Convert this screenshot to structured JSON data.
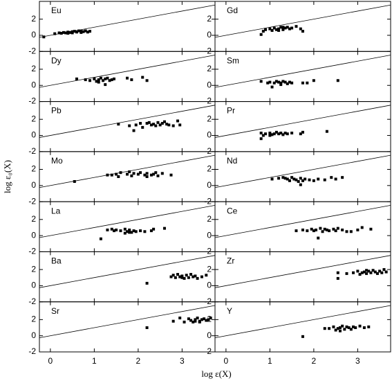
{
  "x_label": "log ε(X)",
  "y_label": "log ε₀(X)",
  "chart_data": [
    {
      "type": "scatter",
      "title": "Eu",
      "color": "#000000",
      "xlim": [
        -0.25,
        3.75
      ],
      "ylim": [
        -2,
        4.2
      ],
      "xticks": [
        0,
        1,
        2,
        3
      ],
      "yticks": [
        -2,
        0,
        2
      ],
      "x": [
        -0.15,
        0.1,
        0.2,
        0.25,
        0.3,
        0.35,
        0.4,
        0.45,
        0.5,
        0.55,
        0.6,
        0.65,
        0.7,
        0.75,
        0.8,
        0.85,
        0.9,
        0.5,
        0.4,
        0.7
      ],
      "y": [
        -0.2,
        0.2,
        0.3,
        0.25,
        0.35,
        0.3,
        0.4,
        0.35,
        0.45,
        0.5,
        0.4,
        0.55,
        0.5,
        0.45,
        0.55,
        0.4,
        0.5,
        0.3,
        0.25,
        0.35
      ]
    },
    {
      "type": "scatter",
      "title": "Gd",
      "color": "#000000",
      "xlim": [
        -0.25,
        3.75
      ],
      "ylim": [
        -2,
        4.2
      ],
      "xticks": [
        0,
        1,
        2,
        3
      ],
      "yticks": [
        -2,
        0,
        2
      ],
      "x": [
        0.8,
        0.85,
        0.9,
        1.0,
        1.05,
        1.1,
        1.15,
        1.2,
        1.25,
        1.3,
        1.35,
        1.4,
        1.45,
        1.5,
        1.6,
        1.7,
        1.75,
        1.2,
        1.3
      ],
      "y": [
        0.1,
        0.5,
        0.7,
        0.8,
        0.6,
        0.9,
        0.7,
        0.8,
        1.0,
        0.7,
        0.9,
        1.0,
        0.8,
        0.9,
        1.1,
        0.8,
        0.5,
        0.6,
        1.0
      ]
    },
    {
      "type": "scatter",
      "title": "Dy",
      "color": "#000000",
      "xlim": [
        -0.25,
        3.75
      ],
      "ylim": [
        -2,
        4.2
      ],
      "xticks": [
        0,
        1,
        2,
        3
      ],
      "yticks": [
        -2,
        0,
        2
      ],
      "x": [
        0.6,
        0.8,
        0.9,
        1.0,
        1.05,
        1.1,
        1.15,
        1.2,
        1.25,
        1.3,
        1.35,
        1.4,
        1.45,
        1.25,
        1.1,
        1.75,
        1.85,
        2.1,
        2.2
      ],
      "y": [
        0.8,
        0.7,
        0.6,
        0.8,
        0.5,
        0.7,
        0.9,
        0.6,
        0.8,
        0.9,
        0.6,
        0.7,
        0.8,
        0.1,
        0.4,
        0.9,
        0.7,
        1.0,
        0.6
      ]
    },
    {
      "type": "scatter",
      "title": "Sm",
      "color": "#000000",
      "xlim": [
        -0.25,
        3.75
      ],
      "ylim": [
        -2,
        4.2
      ],
      "xticks": [
        0,
        1,
        2,
        3
      ],
      "yticks": [
        -2,
        0,
        2
      ],
      "x": [
        0.8,
        0.95,
        1.0,
        1.05,
        1.1,
        1.15,
        1.2,
        1.25,
        1.3,
        1.35,
        1.4,
        1.45,
        1.5,
        1.25,
        1.75,
        1.85,
        2.0,
        2.55
      ],
      "y": [
        0.5,
        0.3,
        0.4,
        -0.2,
        0.3,
        0.5,
        0.4,
        0.3,
        0.5,
        0.4,
        0.2,
        0.4,
        0.3,
        0.1,
        0.3,
        0.3,
        0.6,
        0.6
      ]
    },
    {
      "type": "scatter",
      "title": "Pb",
      "color": "#000000",
      "xlim": [
        -0.25,
        3.75
      ],
      "ylim": [
        -2,
        4.2
      ],
      "xticks": [
        0,
        1,
        2,
        3
      ],
      "yticks": [
        -2,
        0,
        2
      ],
      "x": [
        1.55,
        1.8,
        1.9,
        1.95,
        2.05,
        2.1,
        2.2,
        2.25,
        2.3,
        2.35,
        2.45,
        2.5,
        2.55,
        2.6,
        2.65,
        2.7,
        2.8,
        2.9,
        2.95,
        2.4
      ],
      "y": [
        1.4,
        1.2,
        0.6,
        1.3,
        1.5,
        1.0,
        1.5,
        1.6,
        1.3,
        1.4,
        1.6,
        1.3,
        1.5,
        1.7,
        1.4,
        1.3,
        1.2,
        1.8,
        1.3,
        1.2
      ]
    },
    {
      "type": "scatter",
      "title": "Pr",
      "color": "#000000",
      "xlim": [
        -0.25,
        3.75
      ],
      "ylim": [
        -2,
        4.2
      ],
      "xticks": [
        0,
        1,
        2,
        3
      ],
      "yticks": [
        -2,
        0,
        2
      ],
      "x": [
        0.8,
        0.8,
        0.85,
        0.9,
        1.0,
        1.05,
        1.1,
        1.15,
        1.2,
        1.25,
        1.3,
        1.35,
        1.4,
        1.5,
        1.7,
        1.75,
        2.3,
        1.0
      ],
      "y": [
        0.3,
        -0.4,
        0.0,
        0.2,
        0.3,
        0.1,
        0.2,
        0.4,
        0.2,
        0.3,
        0.1,
        0.3,
        0.2,
        0.3,
        0.2,
        0.4,
        0.5,
        0.0
      ]
    },
    {
      "type": "scatter",
      "title": "Mo",
      "color": "#000000",
      "xlim": [
        -0.25,
        3.75
      ],
      "ylim": [
        -2,
        4.2
      ],
      "xticks": [
        0,
        1,
        2,
        3
      ],
      "yticks": [
        -2,
        0,
        2
      ],
      "x": [
        0.55,
        1.3,
        1.4,
        1.5,
        1.55,
        1.6,
        1.75,
        1.8,
        1.85,
        1.9,
        2.0,
        2.05,
        2.15,
        2.2,
        2.3,
        2.35,
        2.4,
        2.45,
        2.55,
        2.75,
        2.2
      ],
      "y": [
        0.5,
        1.3,
        1.3,
        1.4,
        1.1,
        1.6,
        1.4,
        1.7,
        1.2,
        1.5,
        1.4,
        1.6,
        1.3,
        1.5,
        1.3,
        1.4,
        1.6,
        1.2,
        1.5,
        1.3,
        1.1
      ]
    },
    {
      "type": "scatter",
      "title": "Nd",
      "color": "#000000",
      "xlim": [
        -0.25,
        3.75
      ],
      "ylim": [
        -2,
        4.2
      ],
      "xticks": [
        0,
        1,
        2,
        3
      ],
      "yticks": [
        -2,
        0,
        2
      ],
      "x": [
        1.05,
        1.2,
        1.3,
        1.4,
        1.45,
        1.5,
        1.55,
        1.6,
        1.65,
        1.7,
        1.7,
        1.75,
        1.8,
        1.9,
        2.0,
        2.1,
        2.25,
        2.4,
        2.5,
        2.65,
        1.35
      ],
      "y": [
        0.8,
        0.9,
        1.0,
        0.8,
        0.6,
        1.0,
        0.8,
        0.7,
        0.5,
        0.1,
        0.9,
        0.6,
        0.8,
        0.7,
        0.6,
        0.8,
        0.7,
        1.0,
        0.8,
        1.0,
        0.9
      ]
    },
    {
      "type": "scatter",
      "title": "La",
      "color": "#000000",
      "xlim": [
        -0.25,
        3.75
      ],
      "ylim": [
        -2,
        4.2
      ],
      "xticks": [
        0,
        1,
        2,
        3
      ],
      "yticks": [
        -2,
        0,
        2
      ],
      "x": [
        1.15,
        1.3,
        1.4,
        1.45,
        1.5,
        1.6,
        1.7,
        1.75,
        1.8,
        1.85,
        1.9,
        1.95,
        2.05,
        2.15,
        2.3,
        2.35,
        2.6,
        1.7,
        1.8
      ],
      "y": [
        -0.4,
        0.7,
        0.8,
        0.6,
        0.7,
        0.6,
        0.8,
        0.5,
        0.7,
        0.4,
        0.6,
        0.5,
        0.6,
        0.5,
        0.6,
        0.8,
        0.9,
        0.3,
        0.4
      ]
    },
    {
      "type": "scatter",
      "title": "Ce",
      "color": "#000000",
      "xlim": [
        -0.25,
        3.75
      ],
      "ylim": [
        -2,
        4.2
      ],
      "xticks": [
        0,
        1,
        2,
        3
      ],
      "yticks": [
        -2,
        0,
        2
      ],
      "x": [
        1.6,
        1.75,
        1.85,
        1.95,
        2.0,
        2.05,
        2.1,
        2.15,
        2.2,
        2.25,
        2.3,
        2.35,
        2.45,
        2.5,
        2.55,
        2.65,
        2.75,
        2.85,
        3.0,
        3.1,
        3.3
      ],
      "y": [
        0.6,
        0.7,
        0.6,
        0.8,
        0.6,
        0.7,
        -0.3,
        0.9,
        0.5,
        0.8,
        0.7,
        0.6,
        0.8,
        0.6,
        0.9,
        0.7,
        0.5,
        0.5,
        0.7,
        1.0,
        0.8
      ]
    },
    {
      "type": "scatter",
      "title": "Ba",
      "color": "#000000",
      "xlim": [
        -0.25,
        3.75
      ],
      "ylim": [
        -2,
        4.2
      ],
      "xticks": [
        0,
        1,
        2,
        3
      ],
      "yticks": [
        -2,
        0,
        2
      ],
      "x": [
        2.2,
        2.75,
        2.8,
        2.85,
        2.9,
        2.95,
        3.0,
        3.05,
        3.1,
        3.15,
        3.2,
        3.25,
        3.3,
        3.35,
        3.45,
        3.55,
        3.0
      ],
      "y": [
        0.3,
        1.1,
        1.3,
        1.0,
        1.4,
        1.1,
        1.2,
        0.9,
        1.3,
        1.0,
        1.4,
        1.1,
        1.2,
        0.9,
        1.1,
        1.3,
        1.0
      ]
    },
    {
      "type": "scatter",
      "title": "Zr",
      "color": "#000000",
      "xlim": [
        -0.25,
        3.75
      ],
      "ylim": [
        -2,
        4.2
      ],
      "xticks": [
        0,
        1,
        2,
        3
      ],
      "yticks": [
        -2,
        0,
        2
      ],
      "x": [
        2.55,
        2.55,
        2.75,
        2.9,
        3.0,
        3.05,
        3.1,
        3.15,
        3.2,
        3.25,
        3.3,
        3.35,
        3.4,
        3.45,
        3.5,
        3.55,
        3.6,
        3.65,
        3.2
      ],
      "y": [
        0.9,
        1.6,
        1.5,
        1.6,
        1.8,
        1.4,
        1.6,
        1.7,
        1.5,
        1.8,
        1.6,
        1.9,
        1.7,
        1.5,
        1.8,
        1.6,
        2.0,
        1.7,
        1.9
      ]
    },
    {
      "type": "scatter",
      "title": "Sr",
      "color": "#000000",
      "xlim": [
        -0.25,
        3.75
      ],
      "ylim": [
        -2,
        4.2
      ],
      "xticks": [
        0,
        1,
        2,
        3
      ],
      "yticks": [
        -2,
        0,
        2
      ],
      "x": [
        2.2,
        2.8,
        2.95,
        3.05,
        3.15,
        3.2,
        3.25,
        3.3,
        3.35,
        3.4,
        3.45,
        3.5,
        3.55,
        3.6,
        3.65,
        3.4,
        3.3
      ],
      "y": [
        1.0,
        1.8,
        2.2,
        1.7,
        2.1,
        1.9,
        1.7,
        2.0,
        2.2,
        1.8,
        2.0,
        2.1,
        1.9,
        2.0,
        2.2,
        1.7,
        1.8
      ]
    },
    {
      "type": "scatter",
      "title": "Y",
      "color": "#000000",
      "xlim": [
        -0.25,
        3.75
      ],
      "ylim": [
        -2,
        4.2
      ],
      "xticks": [
        0,
        1,
        2,
        3
      ],
      "yticks": [
        -2,
        0,
        2
      ],
      "x": [
        1.75,
        2.25,
        2.35,
        2.45,
        2.5,
        2.55,
        2.6,
        2.65,
        2.7,
        2.75,
        2.8,
        2.85,
        2.9,
        2.95,
        3.05,
        3.15,
        3.25,
        2.6
      ],
      "y": [
        -0.1,
        0.9,
        0.9,
        1.1,
        0.7,
        0.9,
        1.0,
        1.2,
        0.8,
        1.1,
        1.0,
        0.8,
        1.1,
        1.0,
        1.2,
        1.0,
        1.1,
        0.6
      ]
    }
  ]
}
